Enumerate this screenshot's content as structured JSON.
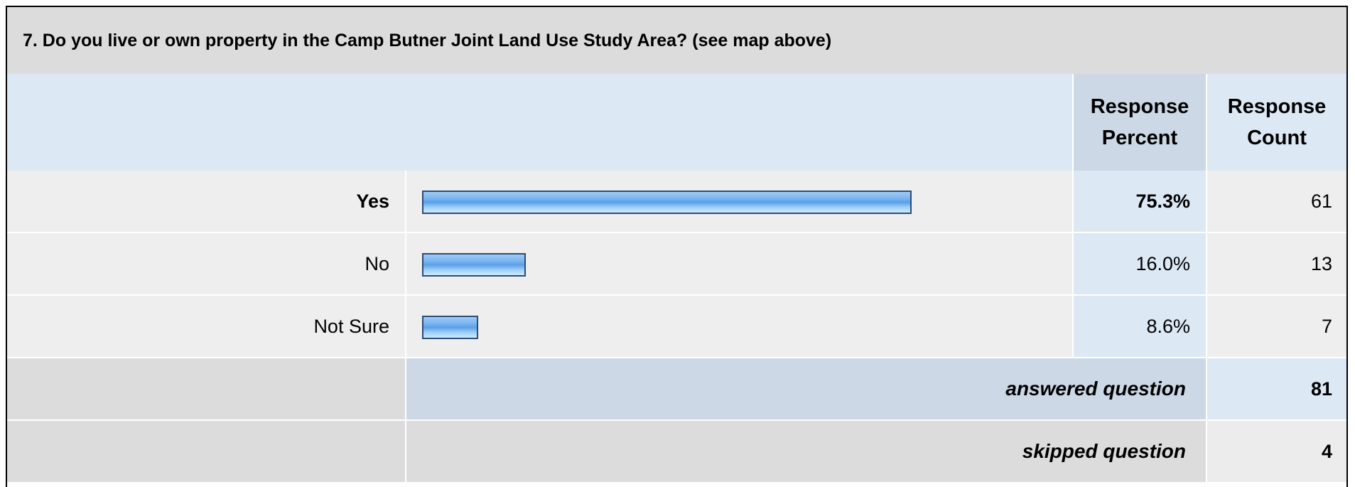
{
  "question": {
    "title": "7. Do you live or own property in the Camp Butner Joint Land Use Study Area? (see map above)"
  },
  "columns": {
    "percent_line1": "Response",
    "percent_line2": "Percent",
    "count_line1": "Response",
    "count_line2": "Count"
  },
  "chart_data": {
    "type": "bar",
    "orientation": "horizontal",
    "categories": [
      "Yes",
      "No",
      "Not Sure"
    ],
    "values": [
      75.3,
      16.0,
      8.6
    ],
    "percent_labels": [
      "75.3%",
      "16.0%",
      "8.6%"
    ],
    "counts": [
      "61",
      "13",
      "7"
    ],
    "xlim": [
      0,
      100
    ],
    "title": "7. Do you live or own property in the Camp Butner Joint Land Use Study Area? (see map above)"
  },
  "summary": {
    "answered_label": "answered question",
    "answered_value": "81",
    "skipped_label": "skipped question",
    "skipped_value": "4"
  },
  "colors": {
    "bar_border": "#2c4d73",
    "bar_fill": "#7cb6f0",
    "header_bg": "#dde8f5",
    "header_col_bg": "#cdd8e6"
  }
}
